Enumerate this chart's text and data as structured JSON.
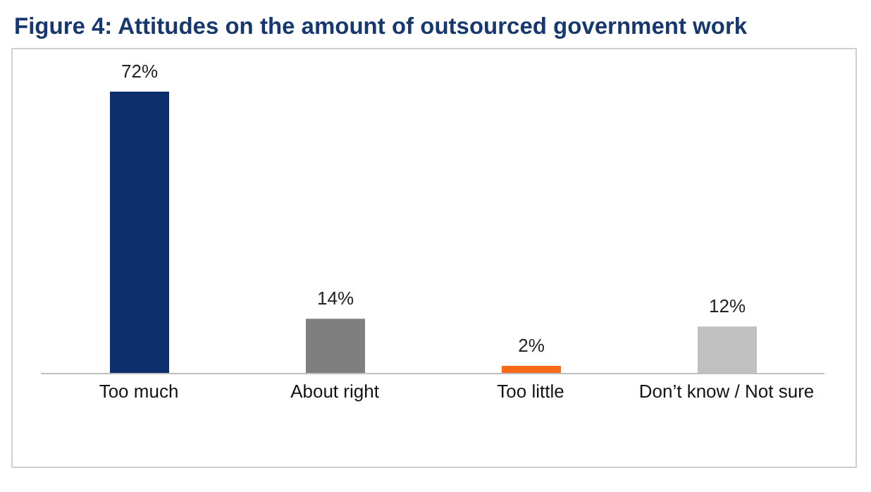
{
  "chart_data": {
    "type": "bar",
    "title": "Figure 4: Attitudes on the amount of outsourced government work",
    "categories": [
      "Too much",
      "About right",
      "Too little",
      "Don’t know / Not sure"
    ],
    "values": [
      72,
      14,
      2,
      12
    ],
    "colors": [
      "#0d2f6b",
      "#7f7f7f",
      "#f96a16",
      "#c0c0c0"
    ],
    "value_labels": [
      "72%",
      "14%",
      "2%",
      "12%"
    ],
    "grid": false,
    "legend": false
  }
}
